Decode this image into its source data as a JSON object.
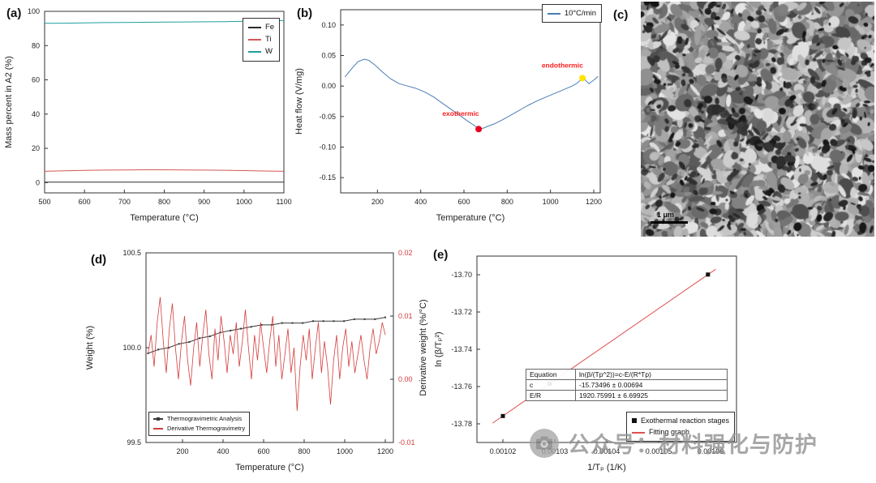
{
  "watermark": {
    "text": "公众号：材料强化与防护"
  },
  "panels": {
    "a_label": "(a)",
    "b_label": "(b)",
    "c_label": "(c)",
    "d_label": "(d)",
    "e_label": "(e)",
    "c": {
      "type": "micrograph",
      "scale_bar": "1 μm"
    }
  },
  "chart_data": [
    {
      "id": "a",
      "type": "line",
      "xlabel": "Temperature (°C)",
      "ylabel": "Mass percent in A2 (%)",
      "xlim": [
        500,
        1100
      ],
      "ylim": [
        -6,
        100
      ],
      "xticks": [
        500,
        600,
        700,
        800,
        900,
        1000,
        1100
      ],
      "xtick_labels": [
        "500",
        "600",
        "700",
        "800",
        "900",
        "1000",
        "1100"
      ],
      "yticks": [
        0,
        20,
        40,
        60,
        80,
        100
      ],
      "ytick_labels": [
        "0",
        "20",
        "40",
        "60",
        "80",
        "100"
      ],
      "legend": [
        {
          "label": "Fe",
          "color": "#2b2b2b",
          "type": "line"
        },
        {
          "label": "Ti",
          "color": "#d45757",
          "type": "line"
        },
        {
          "label": "W",
          "color": "#1f9e9e",
          "type": "line"
        }
      ],
      "series": [
        {
          "name": "Fe",
          "color": "#2b2b2b",
          "x_range": [
            500,
            1100
          ],
          "y": [
            0.3,
            0.3,
            0.3,
            0.3,
            0.3,
            0.3,
            0.3,
            0.3,
            0.3,
            0.3,
            0.3,
            0.3,
            0.3
          ]
        },
        {
          "name": "Ti",
          "color": "#d45757",
          "x_range": [
            500,
            1100
          ],
          "y": [
            6.6,
            6.9,
            7.1,
            7.3,
            7.4,
            7.5,
            7.5,
            7.4,
            7.3,
            7.2,
            7.0,
            6.8,
            6.6
          ]
        },
        {
          "name": "W",
          "color": "#1f9e9e",
          "x_range": [
            500,
            1100
          ],
          "y": [
            93.0,
            93.1,
            93.3,
            93.4,
            93.5,
            93.6,
            93.7,
            93.8,
            93.9,
            94.0,
            94.2,
            94.4,
            94.6
          ]
        }
      ]
    },
    {
      "id": "b",
      "type": "line",
      "xlabel": "Temperature (°C)",
      "ylabel": "Heat flow (V/mg)",
      "xlim": [
        30,
        1230
      ],
      "ylim": [
        -0.175,
        0.125
      ],
      "xticks": [
        200,
        400,
        600,
        800,
        1000,
        1200
      ],
      "xtick_labels": [
        "200",
        "400",
        "600",
        "800",
        "1000",
        "1200"
      ],
      "yticks": [
        -0.15,
        -0.1,
        -0.05,
        0.0,
        0.05,
        0.1
      ],
      "ytick_labels": [
        "-0.15",
        "-0.10",
        "-0.05",
        "0.00",
        "0.05",
        "0.10"
      ],
      "legend": [
        {
          "label": "10°C/min",
          "color": "#4a7db5",
          "type": "line"
        }
      ],
      "series": [
        {
          "name": "10°C/min",
          "color": "#4a7db5",
          "x": [
            50,
            80,
            110,
            140,
            160,
            190,
            220,
            260,
            300,
            340,
            380,
            420,
            460,
            500,
            540,
            580,
            620,
            650,
            668,
            690,
            710,
            740,
            780,
            820,
            860,
            900,
            940,
            980,
            1020,
            1060,
            1100,
            1120,
            1140,
            1155,
            1165,
            1178,
            1190,
            1205,
            1220
          ],
          "y": [
            0.015,
            0.028,
            0.04,
            0.044,
            0.042,
            0.034,
            0.024,
            0.012,
            0.004,
            0.0,
            -0.004,
            -0.01,
            -0.018,
            -0.028,
            -0.038,
            -0.048,
            -0.058,
            -0.065,
            -0.0705,
            -0.069,
            -0.066,
            -0.062,
            -0.055,
            -0.047,
            -0.039,
            -0.031,
            -0.024,
            -0.018,
            -0.012,
            -0.006,
            0.0,
            0.004,
            0.01,
            0.013,
            0.008,
            0.004,
            0.007,
            0.011,
            0.016
          ]
        }
      ],
      "annotations": [
        {
          "text": "exothermic",
          "text_color": "#ff1a1a",
          "tx": 585,
          "ty": -0.049,
          "mx": 668,
          "my": -0.0705,
          "marker_color": "#e8001f"
        },
        {
          "text": "endothermic",
          "text_color": "#ff1a1a",
          "tx": 1055,
          "ty": 0.03,
          "mx": 1148,
          "my": 0.013,
          "marker_color": "#ffe400"
        }
      ]
    },
    {
      "id": "d",
      "type": "line",
      "xlabel": "Temperature (°C)",
      "ylabel": "Weight (%)",
      "ylabel_right": "Derivative weight (%/°C)",
      "xlim": [
        20,
        1240
      ],
      "ylim": [
        99.5,
        100.5
      ],
      "ylim_right": [
        -0.01,
        0.02
      ],
      "xticks": [
        200,
        400,
        600,
        800,
        1000,
        1200
      ],
      "xtick_labels": [
        "200",
        "400",
        "600",
        "800",
        "1000",
        "1200"
      ],
      "yticks": [
        99.5,
        100.0,
        100.5
      ],
      "ytick_labels": [
        "99.5",
        "100.0",
        "100.5"
      ],
      "yticks_right": [
        -0.01,
        0.0,
        0.01,
        0.02
      ],
      "ytick_right_labels": [
        "-0.01",
        "0.00",
        "0.01",
        "0.02"
      ],
      "right_color": "#d43c3c",
      "right_label_color": "#222222",
      "legend": [
        {
          "label": "Thermogravimetric Analysis",
          "color": "#3a3a3a",
          "type": "line-square"
        },
        {
          "label": "Derivative Thermogravimetry",
          "color": "#d43c3c",
          "type": "line"
        }
      ],
      "series": [
        {
          "name": "Thermogravimetric Analysis",
          "color": "#3a3a3a",
          "axis": "left",
          "marker": "square",
          "marker_size": 2,
          "x_range": [
            30,
            1200
          ],
          "y": [
            99.97,
            99.99,
            100.0,
            100.02,
            100.03,
            100.05,
            100.06,
            100.08,
            100.09,
            100.1,
            100.11,
            100.12,
            100.12,
            100.13,
            100.13,
            100.13,
            100.14,
            100.14,
            100.14,
            100.14,
            100.15,
            100.15,
            100.15,
            100.16
          ]
        },
        {
          "name": "Derivative Thermogravimetry",
          "color": "#d43c3c",
          "axis": "right",
          "width": 0.8,
          "x_range": [
            30,
            1200
          ],
          "y": [
            0.004,
            0.007,
            0.002,
            0.009,
            0.013,
            0.006,
            0.001,
            0.008,
            0.012,
            0.005,
            0.0,
            0.006,
            0.01,
            0.003,
            -0.001,
            0.005,
            0.009,
            0.002,
            0.007,
            0.011,
            0.004,
            0.0,
            0.008,
            0.003,
            0.01,
            0.006,
            0.001,
            0.007,
            0.004,
            0.009,
            0.002,
            0.006,
            0.011,
            0.005,
            0.0,
            0.007,
            0.003,
            0.009,
            0.005,
            0.001,
            0.006,
            0.01,
            0.002,
            0.007,
            0.0,
            0.004,
            0.008,
            0.001,
            0.005,
            -0.005,
            0.002,
            0.007,
            0.003,
            0.008,
            0.0,
            0.005,
            0.009,
            0.001,
            0.006,
            0.002,
            -0.004,
            0.003,
            0.007,
            0.0,
            0.005,
            0.008,
            0.002,
            0.006,
            0.001,
            0.004,
            0.007,
            0.003,
            0.0,
            0.005,
            0.008,
            0.004,
            0.006,
            0.009,
            0.007
          ]
        }
      ]
    },
    {
      "id": "e",
      "type": "scatter",
      "xlabel": "1/Tₚ (1/K)",
      "ylabel": "ln (β/Tₚ²)",
      "xlim": [
        0.001015,
        0.001065
      ],
      "ylim": [
        -13.79,
        -13.69
      ],
      "xticks": [
        0.00102,
        0.00103,
        0.00104,
        0.00105,
        0.00106
      ],
      "xtick_labels": [
        "0.00102",
        "0.00103",
        "0.00104",
        "0.00105",
        "0.00106"
      ],
      "yticks": [
        -13.78,
        -13.76,
        -13.74,
        -13.72,
        -13.7
      ],
      "ytick_labels": [
        "-13.78",
        "-13.76",
        "-13.74",
        "-13.72",
        "-13.70"
      ],
      "legend": [
        {
          "label": "Exothermal reaction stages",
          "color": "#111111",
          "type": "square"
        },
        {
          "label": "Fitting graph",
          "color": "#e05050",
          "type": "line"
        }
      ],
      "table": {
        "rows": [
          [
            "Equation",
            "ln(β/(Tp^2))=c-E/(R*Tp)"
          ],
          [
            "c",
            "-15.73496 ± 0.00694"
          ],
          [
            "E/R",
            "1920.75991 ± 6.69925"
          ]
        ]
      },
      "series": [
        {
          "name": "Fitting graph",
          "color": "#e05050",
          "x": [
            0.001018,
            0.001061
          ],
          "y": [
            -13.77963,
            -13.69703
          ]
        },
        {
          "name": "Exothermal reaction stages",
          "color": "#111111",
          "line": false,
          "marker": "square",
          "marker_size": 5,
          "x": [
            0.00102,
            0.001029,
            0.0010595
          ],
          "y": [
            -13.7758,
            -13.7585,
            -13.6999
          ]
        }
      ]
    }
  ]
}
